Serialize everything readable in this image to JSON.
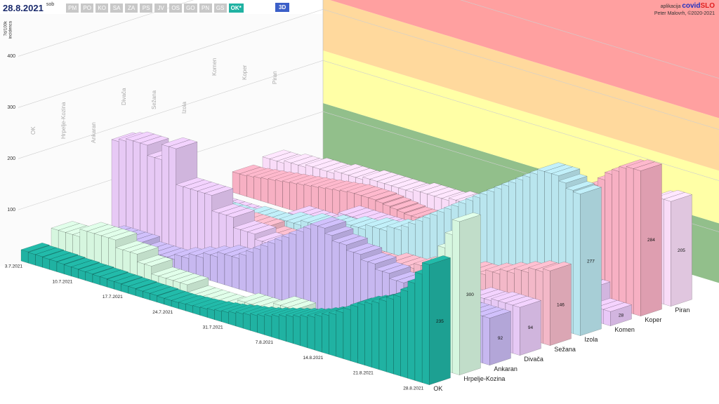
{
  "header": {
    "date": "28.8.2021",
    "weekday": "sob",
    "regions": [
      "PM",
      "PO",
      "KO",
      "SA",
      "ZA",
      "PS",
      "JV",
      "OS",
      "GO",
      "PN",
      "GS",
      "OK*"
    ],
    "view": "3D",
    "app_label": "aplikacija",
    "app_name_1": "covid",
    "app_name_2": "SLO",
    "author": "Peter Malovrh, ©2020-2021"
  },
  "chart_data": {
    "type": "bar3d",
    "y_label": [
      "7d/100k",
      "incidenca"
    ],
    "ylim": [
      0,
      480
    ],
    "yticks": [
      100,
      200,
      300,
      400
    ],
    "grid": true,
    "categories": [
      "3.7.2021",
      null,
      null,
      null,
      null,
      null,
      null,
      "10.7.2021",
      null,
      null,
      null,
      null,
      null,
      null,
      "17.7.2021",
      null,
      null,
      null,
      null,
      null,
      null,
      "24.7.2021",
      null,
      null,
      null,
      null,
      null,
      null,
      "31.7.2021",
      null,
      null,
      null,
      null,
      null,
      null,
      "7.8.2021",
      null,
      null,
      null,
      null,
      null,
      null,
      "14.8.2021",
      null,
      null,
      null,
      null,
      null,
      null,
      "21.8.2021",
      null,
      null,
      null,
      null,
      null,
      null,
      "28.8.2021"
    ],
    "series": [
      {
        "name": "OK",
        "color": "#20b2a2",
        "values": [
          22,
          21,
          21,
          20,
          20,
          19,
          18,
          18,
          17,
          17,
          16,
          16,
          15,
          15,
          14,
          14,
          13,
          13,
          13,
          12,
          12,
          12,
          13,
          14,
          15,
          16,
          18,
          20,
          22,
          25,
          28,
          30,
          33,
          36,
          40,
          44,
          48,
          52,
          56,
          60,
          64,
          70,
          76,
          82,
          90,
          100,
          110,
          118,
          124,
          130,
          138,
          146,
          155,
          170,
          190,
          212,
          235
        ]
      },
      {
        "name": "Hrpelje-Kozina",
        "color": "#d6f6df",
        "values": [
          45,
          45,
          45,
          45,
          60,
          60,
          60,
          60,
          60,
          45,
          45,
          45,
          30,
          30,
          15,
          15,
          15,
          15,
          15,
          0,
          0,
          0,
          0,
          0,
          0,
          0,
          15,
          15,
          15,
          15,
          15,
          30,
          30,
          30,
          15,
          15,
          15,
          15,
          15,
          15,
          30,
          30,
          45,
          45,
          60,
          60,
          60,
          75,
          90,
          105,
          120,
          150,
          180,
          210,
          240,
          270,
          300
        ]
      },
      {
        "name": "Ankaran",
        "color": "#c7b8f0",
        "values": [
          20,
          20,
          20,
          30,
          30,
          30,
          30,
          30,
          20,
          20,
          20,
          20,
          20,
          30,
          30,
          40,
          40,
          50,
          50,
          60,
          60,
          60,
          70,
          80,
          90,
          100,
          110,
          120,
          130,
          140,
          150,
          160,
          170,
          170,
          160,
          150,
          150,
          140,
          140,
          130,
          130,
          120,
          120,
          110,
          110,
          100,
          100,
          100,
          95,
          95,
          92,
          92,
          92,
          92,
          92,
          92,
          92
        ]
      },
      {
        "name": "Divača",
        "color": "#e7c9f5",
        "values": [
          180,
          185,
          190,
          190,
          190,
          170,
          170,
          200,
          200,
          130,
          130,
          130,
          130,
          130,
          100,
          100,
          100,
          80,
          80,
          80,
          70,
          70,
          70,
          60,
          60,
          60,
          50,
          50,
          50,
          60,
          60,
          60,
          70,
          70,
          70,
          60,
          60,
          60,
          50,
          50,
          50,
          60,
          60,
          60,
          70,
          70,
          70,
          80,
          80,
          80,
          90,
          90,
          90,
          94,
          94,
          94,
          94
        ]
      },
      {
        "name": "Sežana",
        "color": "#f3b8c8",
        "values": [
          30,
          30,
          30,
          30,
          40,
          40,
          40,
          40,
          50,
          50,
          50,
          50,
          50,
          60,
          60,
          60,
          60,
          50,
          50,
          50,
          50,
          40,
          40,
          40,
          40,
          40,
          50,
          50,
          50,
          50,
          60,
          60,
          60,
          60,
          70,
          70,
          70,
          70,
          80,
          80,
          80,
          80,
          90,
          90,
          90,
          100,
          100,
          100,
          110,
          110,
          120,
          120,
          130,
          130,
          140,
          140,
          146
        ]
      },
      {
        "name": "Izola",
        "color": "#b9e5ee",
        "values": [
          30,
          30,
          30,
          30,
          30,
          30,
          30,
          30,
          30,
          30,
          40,
          40,
          40,
          40,
          40,
          50,
          50,
          50,
          60,
          60,
          60,
          70,
          70,
          70,
          80,
          80,
          80,
          90,
          90,
          90,
          100,
          100,
          110,
          120,
          130,
          140,
          150,
          160,
          170,
          180,
          190,
          200,
          210,
          220,
          230,
          240,
          250,
          260,
          270,
          280,
          290,
          300,
          300,
          300,
          290,
          280,
          277
        ]
      },
      {
        "name": "Komen",
        "color": "#e9c9f8",
        "values": [
          0,
          0,
          0,
          0,
          0,
          0,
          0,
          0,
          0,
          0,
          0,
          0,
          30,
          30,
          30,
          30,
          30,
          30,
          30,
          60,
          60,
          60,
          60,
          60,
          60,
          60,
          30,
          30,
          30,
          30,
          30,
          30,
          30,
          0,
          0,
          0,
          0,
          0,
          0,
          0,
          30,
          30,
          30,
          30,
          30,
          30,
          30,
          60,
          60,
          60,
          60,
          60,
          60,
          60,
          28,
          28,
          28
        ]
      },
      {
        "name": "Koper",
        "color": "#f7b0c3",
        "values": [
          40,
          40,
          42,
          44,
          46,
          48,
          50,
          52,
          54,
          56,
          58,
          60,
          62,
          64,
          66,
          68,
          70,
          70,
          70,
          70,
          68,
          66,
          64,
          62,
          60,
          60,
          62,
          64,
          66,
          70,
          74,
          78,
          82,
          86,
          90,
          95,
          100,
          105,
          110,
          118,
          126,
          134,
          142,
          150,
          160,
          170,
          180,
          190,
          200,
          215,
          230,
          245,
          260,
          270,
          280,
          284,
          284
        ]
      },
      {
        "name": "Piran",
        "color": "#f9dcf8",
        "values": [
          50,
          50,
          50,
          55,
          55,
          55,
          60,
          60,
          60,
          60,
          65,
          65,
          65,
          65,
          70,
          70,
          70,
          70,
          70,
          70,
          70,
          75,
          75,
          75,
          75,
          75,
          80,
          80,
          80,
          80,
          80,
          85,
          85,
          85,
          85,
          90,
          90,
          90,
          95,
          95,
          100,
          100,
          105,
          110,
          115,
          120,
          125,
          130,
          140,
          150,
          160,
          170,
          180,
          190,
          200,
          205,
          205
        ]
      }
    ]
  }
}
